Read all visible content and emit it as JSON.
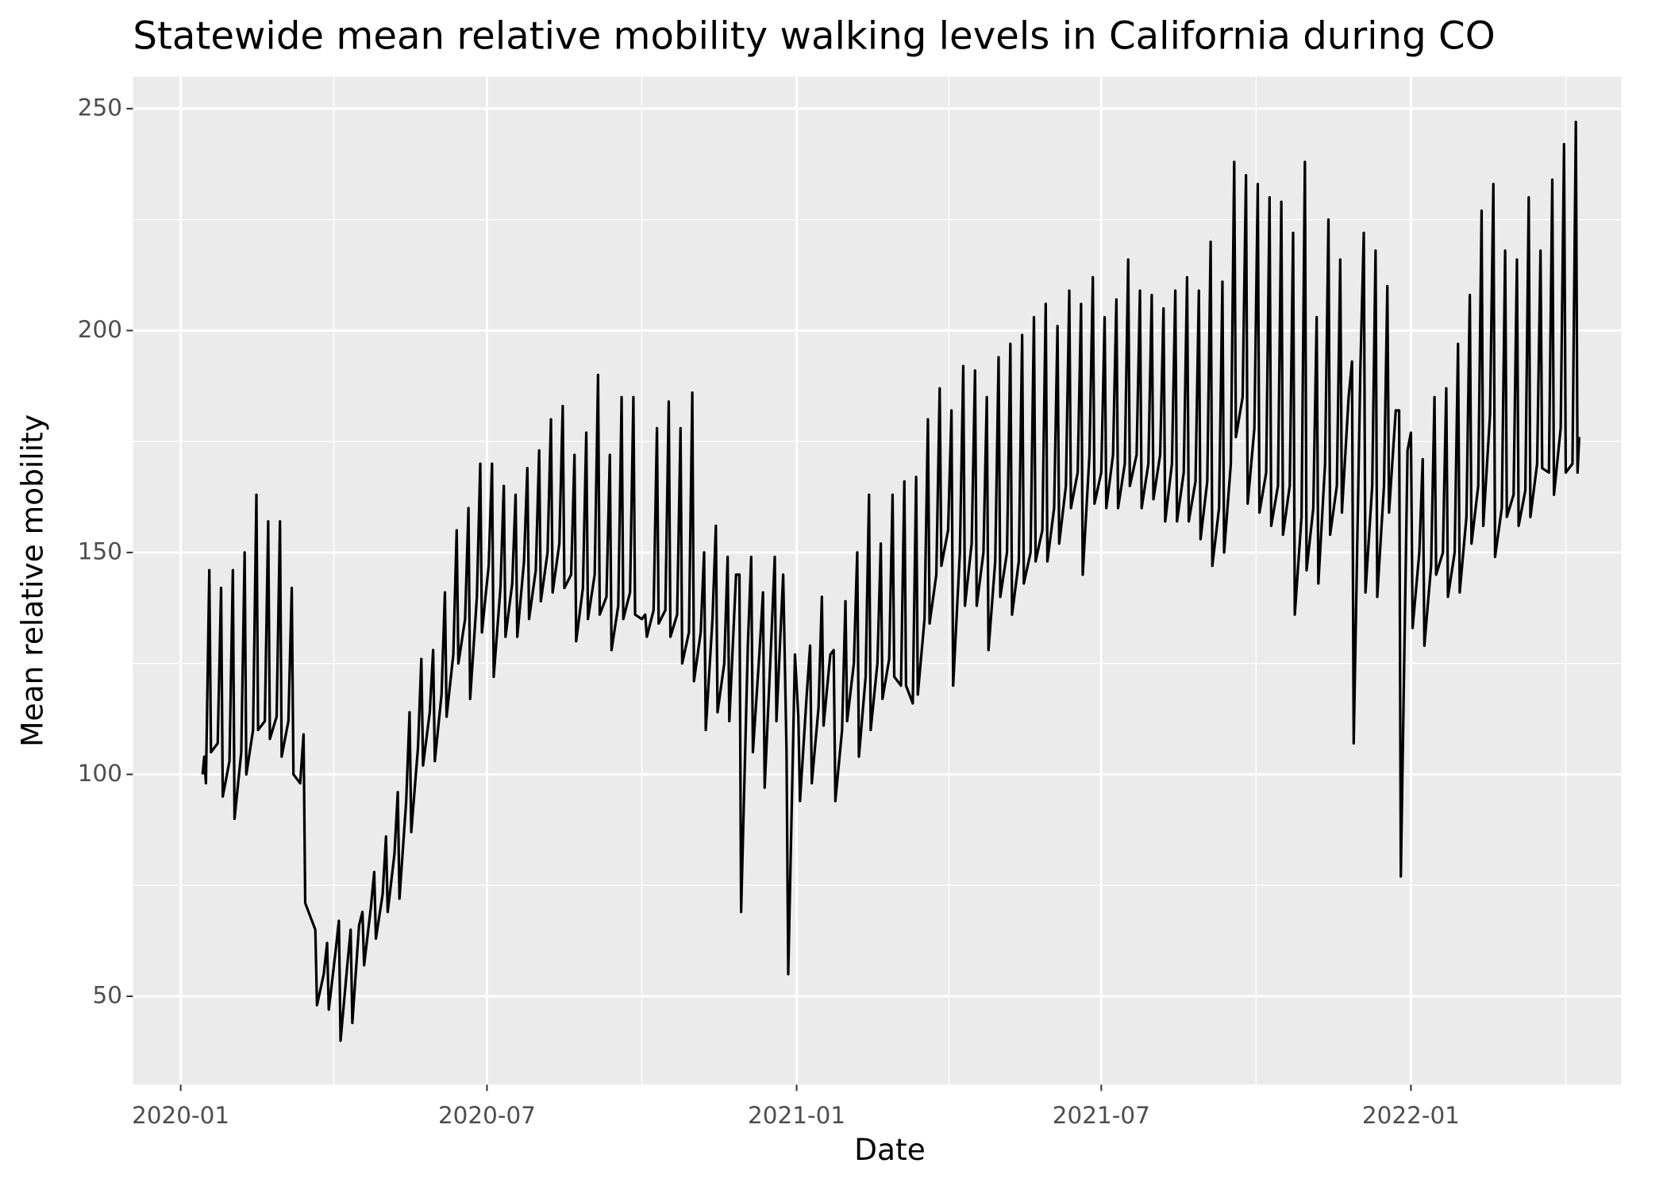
{
  "chart_data": {
    "type": "line",
    "title": "Statewide mean relative mobility walking levels in California during CO",
    "x_label": "Date",
    "y_label": "Mean relative mobility",
    "color": "#000000",
    "grid": true,
    "xlim": [
      -28.4,
      856
    ],
    "ylim": [
      30.1,
      257.2
    ],
    "xticks": [
      {
        "value": 0,
        "label": "2020-01"
      },
      {
        "value": 182,
        "label": "2020-07"
      },
      {
        "value": 366,
        "label": "2021-01"
      },
      {
        "value": 547,
        "label": "2021-07"
      },
      {
        "value": 731,
        "label": "2022-01"
      }
    ],
    "yticks": [
      50,
      100,
      150,
      200,
      250
    ],
    "x": [
      13,
      14,
      15,
      17,
      18,
      22,
      24,
      25,
      29,
      31,
      32,
      36,
      38,
      39,
      43,
      45,
      46,
      50,
      52,
      53,
      57,
      59,
      60,
      64,
      66,
      67,
      71,
      73,
      74,
      78,
      80,
      81,
      85,
      87,
      88,
      92,
      94,
      95,
      99,
      101,
      102,
      106,
      108,
      109,
      113,
      115,
      116,
      120,
      122,
      123,
      127,
      129,
      130,
      134,
      136,
      137,
      141,
      143,
      144,
      148,
      150,
      151,
      155,
      157,
      158,
      162,
      164,
      165,
      169,
      171,
      172,
      176,
      178,
      179,
      183,
      185,
      186,
      190,
      192,
      193,
      197,
      199,
      200,
      204,
      206,
      207,
      211,
      213,
      214,
      218,
      220,
      221,
      225,
      227,
      228,
      232,
      234,
      235,
      239,
      241,
      242,
      246,
      248,
      249,
      253,
      255,
      256,
      260,
      262,
      263,
      267,
      269,
      270,
      274,
      276,
      277,
      281,
      283,
      284,
      288,
      290,
      291,
      295,
      297,
      298,
      302,
      304,
      305,
      309,
      311,
      312,
      316,
      318,
      319,
      323,
      325,
      326,
      330,
      332,
      333,
      337,
      339,
      340,
      344,
      346,
      347,
      351,
      353,
      354,
      358,
      360,
      361,
      365,
      367,
      368,
      372,
      374,
      375,
      379,
      381,
      382,
      386,
      388,
      389,
      393,
      395,
      396,
      400,
      402,
      403,
      407,
      409,
      410,
      414,
      416,
      417,
      421,
      423,
      424,
      428,
      430,
      431,
      435,
      437,
      438,
      442,
      444,
      445,
      449,
      451,
      452,
      456,
      458,
      459,
      463,
      465,
      466,
      470,
      472,
      473,
      477,
      479,
      480,
      484,
      486,
      487,
      491,
      493,
      494,
      498,
      500,
      501,
      505,
      507,
      508,
      512,
      514,
      515,
      519,
      521,
      522,
      526,
      528,
      529,
      533,
      535,
      536,
      540,
      542,
      543,
      547,
      549,
      550,
      554,
      556,
      557,
      561,
      563,
      564,
      568,
      570,
      571,
      575,
      577,
      578,
      582,
      584,
      585,
      589,
      591,
      592,
      596,
      598,
      599,
      603,
      605,
      606,
      610,
      612,
      613,
      617,
      619,
      620,
      624,
      626,
      627,
      631,
      633,
      634,
      638,
      640,
      641,
      645,
      647,
      648,
      652,
      654,
      655,
      659,
      661,
      662,
      666,
      668,
      669,
      673,
      675,
      676,
      680,
      682,
      683,
      687,
      689,
      690,
      694,
      696,
      697,
      701,
      703,
      704,
      708,
      710,
      711,
      715,
      717,
      718,
      722,
      724,
      725,
      729,
      731,
      732,
      736,
      738,
      739,
      743,
      745,
      746,
      750,
      752,
      753,
      757,
      759,
      760,
      764,
      766,
      767,
      771,
      773,
      774,
      778,
      780,
      781,
      785,
      787,
      788,
      792,
      794,
      795,
      799,
      801,
      802,
      806,
      808,
      809,
      813,
      815,
      816,
      820,
      822,
      823,
      827,
      829,
      830,
      831
    ],
    "values": [
      100,
      104,
      98,
      146,
      105,
      107,
      142,
      95,
      103,
      146,
      90,
      105,
      150,
      100,
      110,
      163,
      110,
      112,
      157,
      108,
      113,
      157,
      104,
      112,
      142,
      100,
      98,
      109,
      71,
      67,
      65,
      48,
      55,
      62,
      47,
      60,
      67,
      40,
      57,
      65,
      44,
      66,
      69,
      57,
      70,
      78,
      63,
      73,
      86,
      69,
      82,
      96,
      72,
      94,
      114,
      87,
      106,
      126,
      102,
      114,
      128,
      103,
      118,
      141,
      113,
      127,
      155,
      125,
      135,
      160,
      117,
      140,
      170,
      132,
      147,
      170,
      122,
      142,
      165,
      131,
      143,
      163,
      131,
      148,
      169,
      135,
      146,
      173,
      139,
      150,
      180,
      141,
      152,
      183,
      142,
      145,
      172,
      130,
      142,
      177,
      135,
      145,
      190,
      136,
      140,
      172,
      128,
      138,
      185,
      135,
      141,
      185,
      136,
      135,
      136,
      131,
      137,
      178,
      134,
      137,
      184,
      131,
      136,
      178,
      125,
      132,
      186,
      121,
      132,
      150,
      110,
      135,
      156,
      114,
      125,
      149,
      112,
      145,
      145,
      69,
      129,
      149,
      105,
      128,
      141,
      97,
      131,
      149,
      112,
      145,
      105,
      55,
      127,
      113,
      94,
      118,
      129,
      98,
      115,
      140,
      111,
      127,
      128,
      94,
      110,
      139,
      112,
      125,
      150,
      104,
      122,
      163,
      110,
      125,
      152,
      117,
      126,
      163,
      122,
      120,
      166,
      120,
      116,
      167,
      118,
      135,
      180,
      134,
      145,
      187,
      147,
      155,
      182,
      120,
      150,
      192,
      138,
      152,
      191,
      138,
      150,
      185,
      128,
      148,
      194,
      140,
      150,
      197,
      136,
      148,
      199,
      143,
      150,
      203,
      148,
      155,
      206,
      148,
      160,
      201,
      152,
      165,
      209,
      160,
      168,
      206,
      145,
      172,
      212,
      161,
      168,
      203,
      160,
      172,
      207,
      160,
      170,
      216,
      165,
      172,
      209,
      160,
      170,
      208,
      162,
      172,
      205,
      157,
      170,
      209,
      157,
      168,
      212,
      157,
      166,
      209,
      153,
      166,
      220,
      147,
      160,
      211,
      150,
      170,
      238,
      176,
      185,
      235,
      161,
      178,
      233,
      159,
      168,
      230,
      156,
      165,
      229,
      154,
      165,
      222,
      136,
      158,
      238,
      146,
      160,
      203,
      143,
      170,
      225,
      154,
      165,
      216,
      159,
      185,
      193,
      107,
      192,
      222,
      141,
      165,
      218,
      140,
      165,
      210,
      159,
      182,
      182,
      77,
      173,
      177,
      133,
      150,
      171,
      129,
      147,
      185,
      145,
      150,
      187,
      140,
      150,
      197,
      141,
      158,
      208,
      152,
      165,
      227,
      156,
      181,
      233,
      149,
      160,
      218,
      158,
      163,
      216,
      156,
      164,
      230,
      158,
      170,
      218,
      169,
      168,
      234,
      163,
      178,
      242,
      168,
      170,
      247,
      168,
      176
    ]
  }
}
